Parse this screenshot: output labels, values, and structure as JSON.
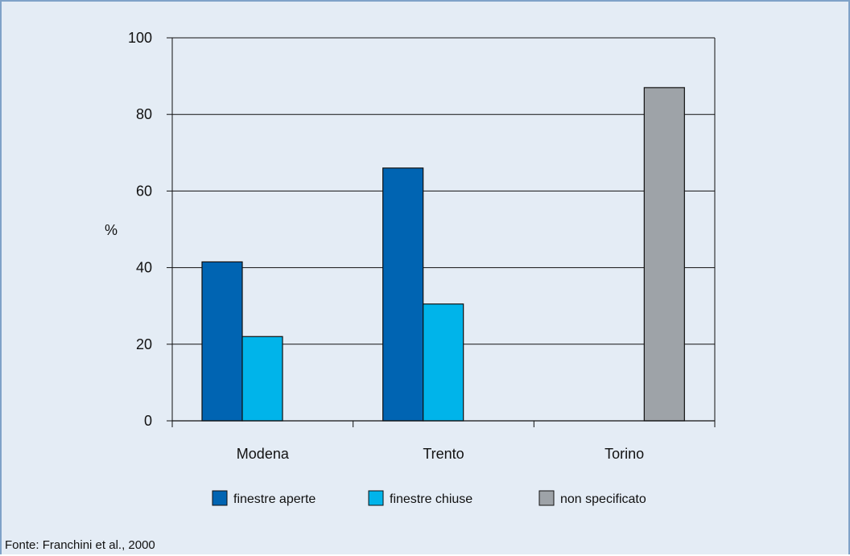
{
  "chart_data": {
    "type": "bar",
    "title": "",
    "xlabel": "",
    "ylabel": "%",
    "ylim": [
      0,
      100
    ],
    "yticks": [
      0,
      20,
      40,
      60,
      80,
      100
    ],
    "grid": true,
    "legend_position": "bottom",
    "categories": [
      "Modena",
      "Trento",
      "Torino"
    ],
    "series": [
      {
        "name": "finestre aperte",
        "color": "#0064b2",
        "values": [
          41.5,
          66,
          null
        ]
      },
      {
        "name": "finestre chiuse",
        "color": "#00b4ea",
        "values": [
          22,
          30.5,
          null
        ]
      },
      {
        "name": "non specificato",
        "color": "#9ea3a8",
        "values": [
          null,
          null,
          87
        ]
      }
    ]
  },
  "source": "Fonte: Franchini et al., 2000"
}
